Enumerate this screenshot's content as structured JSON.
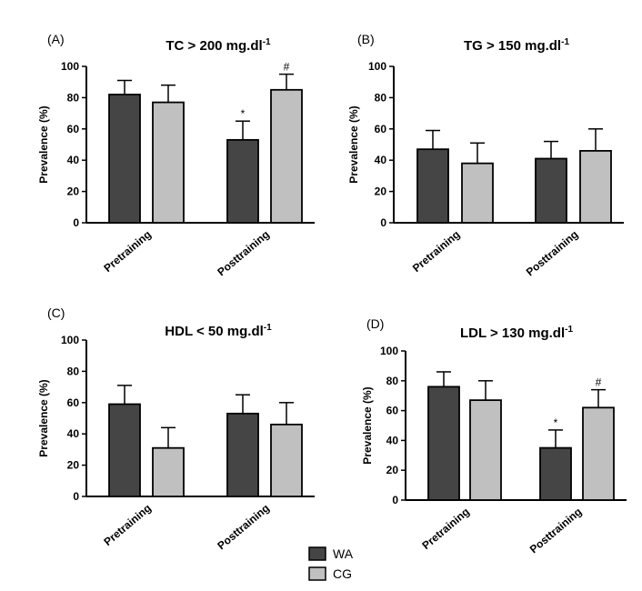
{
  "chart_data": [
    {
      "type": "bar",
      "panel_label": "(A)",
      "title": "TC > 200 mg.dl",
      "title_superscript": "-1",
      "ylabel": "Prevalence (%)",
      "ylim": [
        0,
        100
      ],
      "yticks": [
        "0",
        "20",
        "40",
        "60",
        "80",
        "100"
      ],
      "categories": [
        "Pretraining",
        "Posttraining"
      ],
      "series": [
        {
          "name": "WA",
          "values": [
            82,
            53
          ],
          "errors": [
            9,
            12
          ],
          "annotations": [
            "",
            "*"
          ]
        },
        {
          "name": "CG",
          "values": [
            77,
            85
          ],
          "errors": [
            11,
            10
          ],
          "annotations": [
            "",
            "#"
          ]
        }
      ]
    },
    {
      "type": "bar",
      "panel_label": "(B)",
      "title": "TG > 150 mg.dl",
      "title_superscript": "-1",
      "ylabel": "Prevalence (%)",
      "ylim": [
        0,
        100
      ],
      "yticks": [
        "0",
        "20",
        "40",
        "60",
        "80",
        "100"
      ],
      "categories": [
        "Pretraining",
        "Posttraining"
      ],
      "series": [
        {
          "name": "WA",
          "values": [
            47,
            41
          ],
          "errors": [
            12,
            11
          ],
          "annotations": [
            "",
            ""
          ]
        },
        {
          "name": "CG",
          "values": [
            38,
            46
          ],
          "errors": [
            13,
            14
          ],
          "annotations": [
            "",
            ""
          ]
        }
      ]
    },
    {
      "type": "bar",
      "panel_label": "(C)",
      "title": "HDL < 50 mg.dl",
      "title_superscript": "-1",
      "ylabel": "Prevalence (%)",
      "ylim": [
        0,
        100
      ],
      "yticks": [
        "0",
        "20",
        "40",
        "60",
        "80",
        "100"
      ],
      "categories": [
        "Pretraining",
        "Posttraining"
      ],
      "series": [
        {
          "name": "WA",
          "values": [
            59,
            53
          ],
          "errors": [
            12,
            12
          ],
          "annotations": [
            "",
            ""
          ]
        },
        {
          "name": "CG",
          "values": [
            31,
            46
          ],
          "errors": [
            13,
            14
          ],
          "annotations": [
            "",
            ""
          ]
        }
      ]
    },
    {
      "type": "bar",
      "panel_label": "(D)",
      "title": "LDL > 130 mg.dl",
      "title_superscript": "-1",
      "ylabel": "Prevalence (%)",
      "ylim": [
        0,
        100
      ],
      "yticks": [
        "0",
        "20",
        "40",
        "60",
        "80",
        "100"
      ],
      "categories": [
        "Pretraining",
        "Posttraining"
      ],
      "series": [
        {
          "name": "WA",
          "values": [
            76,
            35
          ],
          "errors": [
            10,
            12
          ],
          "annotations": [
            "",
            "*"
          ]
        },
        {
          "name": "CG",
          "values": [
            67,
            62
          ],
          "errors": [
            13,
            12
          ],
          "annotations": [
            "",
            "#"
          ]
        }
      ]
    }
  ],
  "legend": {
    "placement": "bottom-center",
    "items": [
      {
        "label": "WA",
        "color": "#454545"
      },
      {
        "label": "CG",
        "color": "#c0c0c0"
      }
    ]
  }
}
